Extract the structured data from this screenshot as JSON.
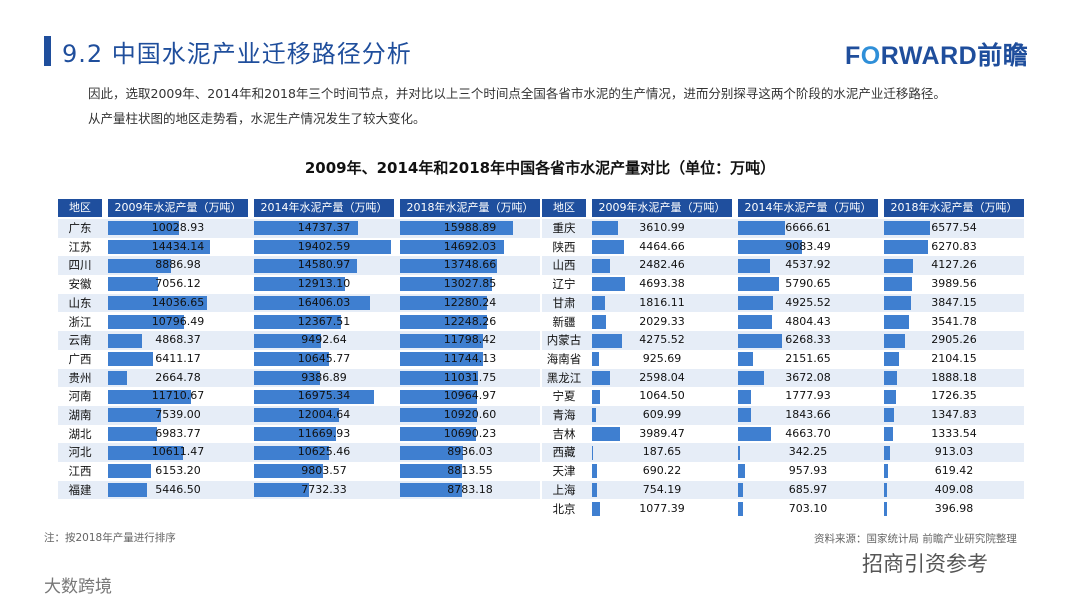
{
  "title": "9.2 中国水泥产业迁移路径分析",
  "logo": {
    "text_before": "F",
    "text_o": "O",
    "text_after": "RWARD",
    "text_cn": "前瞻"
  },
  "paragraph": [
    "因此，选取2009年、2014年和2018年三个时间节点，并对比以上三个时间点全国各省市水泥的生产情况，进而分别探寻这两个阶段的水泥产业迁移路径。",
    "从产量柱状图的地区走势看，水泥生产情况发生了较大变化。"
  ],
  "note": "注：按2018年产量进行排序",
  "source": "资料来源：国家统计局  前瞻产业研究院整理",
  "watermark_left": "大数跨境",
  "watermark_right": "招商引资参考",
  "colors": {
    "header": "#1f4f9e",
    "bar": "#3f7fd0",
    "row_alt": "#e6edf7"
  },
  "chart_data": {
    "type": "table",
    "title": "2009年、2014年和2018年中国各省市水泥产量对比（单位：万吨）",
    "columns": [
      "地区",
      "2009年水泥产量（万吨）",
      "2014年水泥产量（万吨）",
      "2018年水泥产量（万吨）"
    ],
    "max": 19402.59,
    "left": {
      "regions": [
        "广东",
        "江苏",
        "四川",
        "安徽",
        "山东",
        "浙江",
        "云南",
        "广西",
        "贵州",
        "河南",
        "湖南",
        "湖北",
        "河北",
        "江西",
        "福建"
      ],
      "y2009": [
        "10028.93",
        "14434.14",
        "8886.98",
        "7056.12",
        "14036.65",
        "10796.49",
        "4868.37",
        "6411.17",
        "2664.78",
        "11710.67",
        "7539.00",
        "6983.77",
        "10611.47",
        "6153.20",
        "5446.50"
      ],
      "y2014": [
        "14737.37",
        "19402.59",
        "14580.97",
        "12913.10",
        "16406.03",
        "12367.51",
        "9492.64",
        "10645.77",
        "9386.89",
        "16975.34",
        "12004.64",
        "11669.93",
        "10625.46",
        "9803.57",
        "7732.33"
      ],
      "y2018": [
        "15988.89",
        "14692.03",
        "13748.66",
        "13027.85",
        "12280.24",
        "12248.26",
        "11798.42",
        "11744.13",
        "11031.75",
        "10964.97",
        "10920.60",
        "10690.23",
        "8936.03",
        "8813.55",
        "8783.18"
      ]
    },
    "right": {
      "regions": [
        "重庆",
        "陕西",
        "山西",
        "辽宁",
        "甘肃",
        "新疆",
        "内蒙古",
        "海南省",
        "黑龙江",
        "宁夏",
        "青海",
        "吉林",
        "西藏",
        "天津",
        "上海",
        "北京"
      ],
      "y2009": [
        "3610.99",
        "4464.66",
        "2482.46",
        "4693.38",
        "1816.11",
        "2029.33",
        "4275.52",
        "925.69",
        "2598.04",
        "1064.50",
        "609.99",
        "3989.47",
        "187.65",
        "690.22",
        "754.19",
        "1077.39"
      ],
      "y2014": [
        "6666.61",
        "9083.49",
        "4537.92",
        "5790.65",
        "4925.52",
        "4804.43",
        "6268.33",
        "2151.65",
        "3672.08",
        "1777.93",
        "1843.66",
        "4663.70",
        "342.25",
        "957.93",
        "685.97",
        "703.10"
      ],
      "y2018": [
        "6577.54",
        "6270.83",
        "4127.26",
        "3989.56",
        "3847.15",
        "3541.78",
        "2905.26",
        "2104.15",
        "1888.18",
        "1726.35",
        "1347.83",
        "1333.54",
        "913.03",
        "619.42",
        "409.08",
        "396.98"
      ]
    }
  }
}
